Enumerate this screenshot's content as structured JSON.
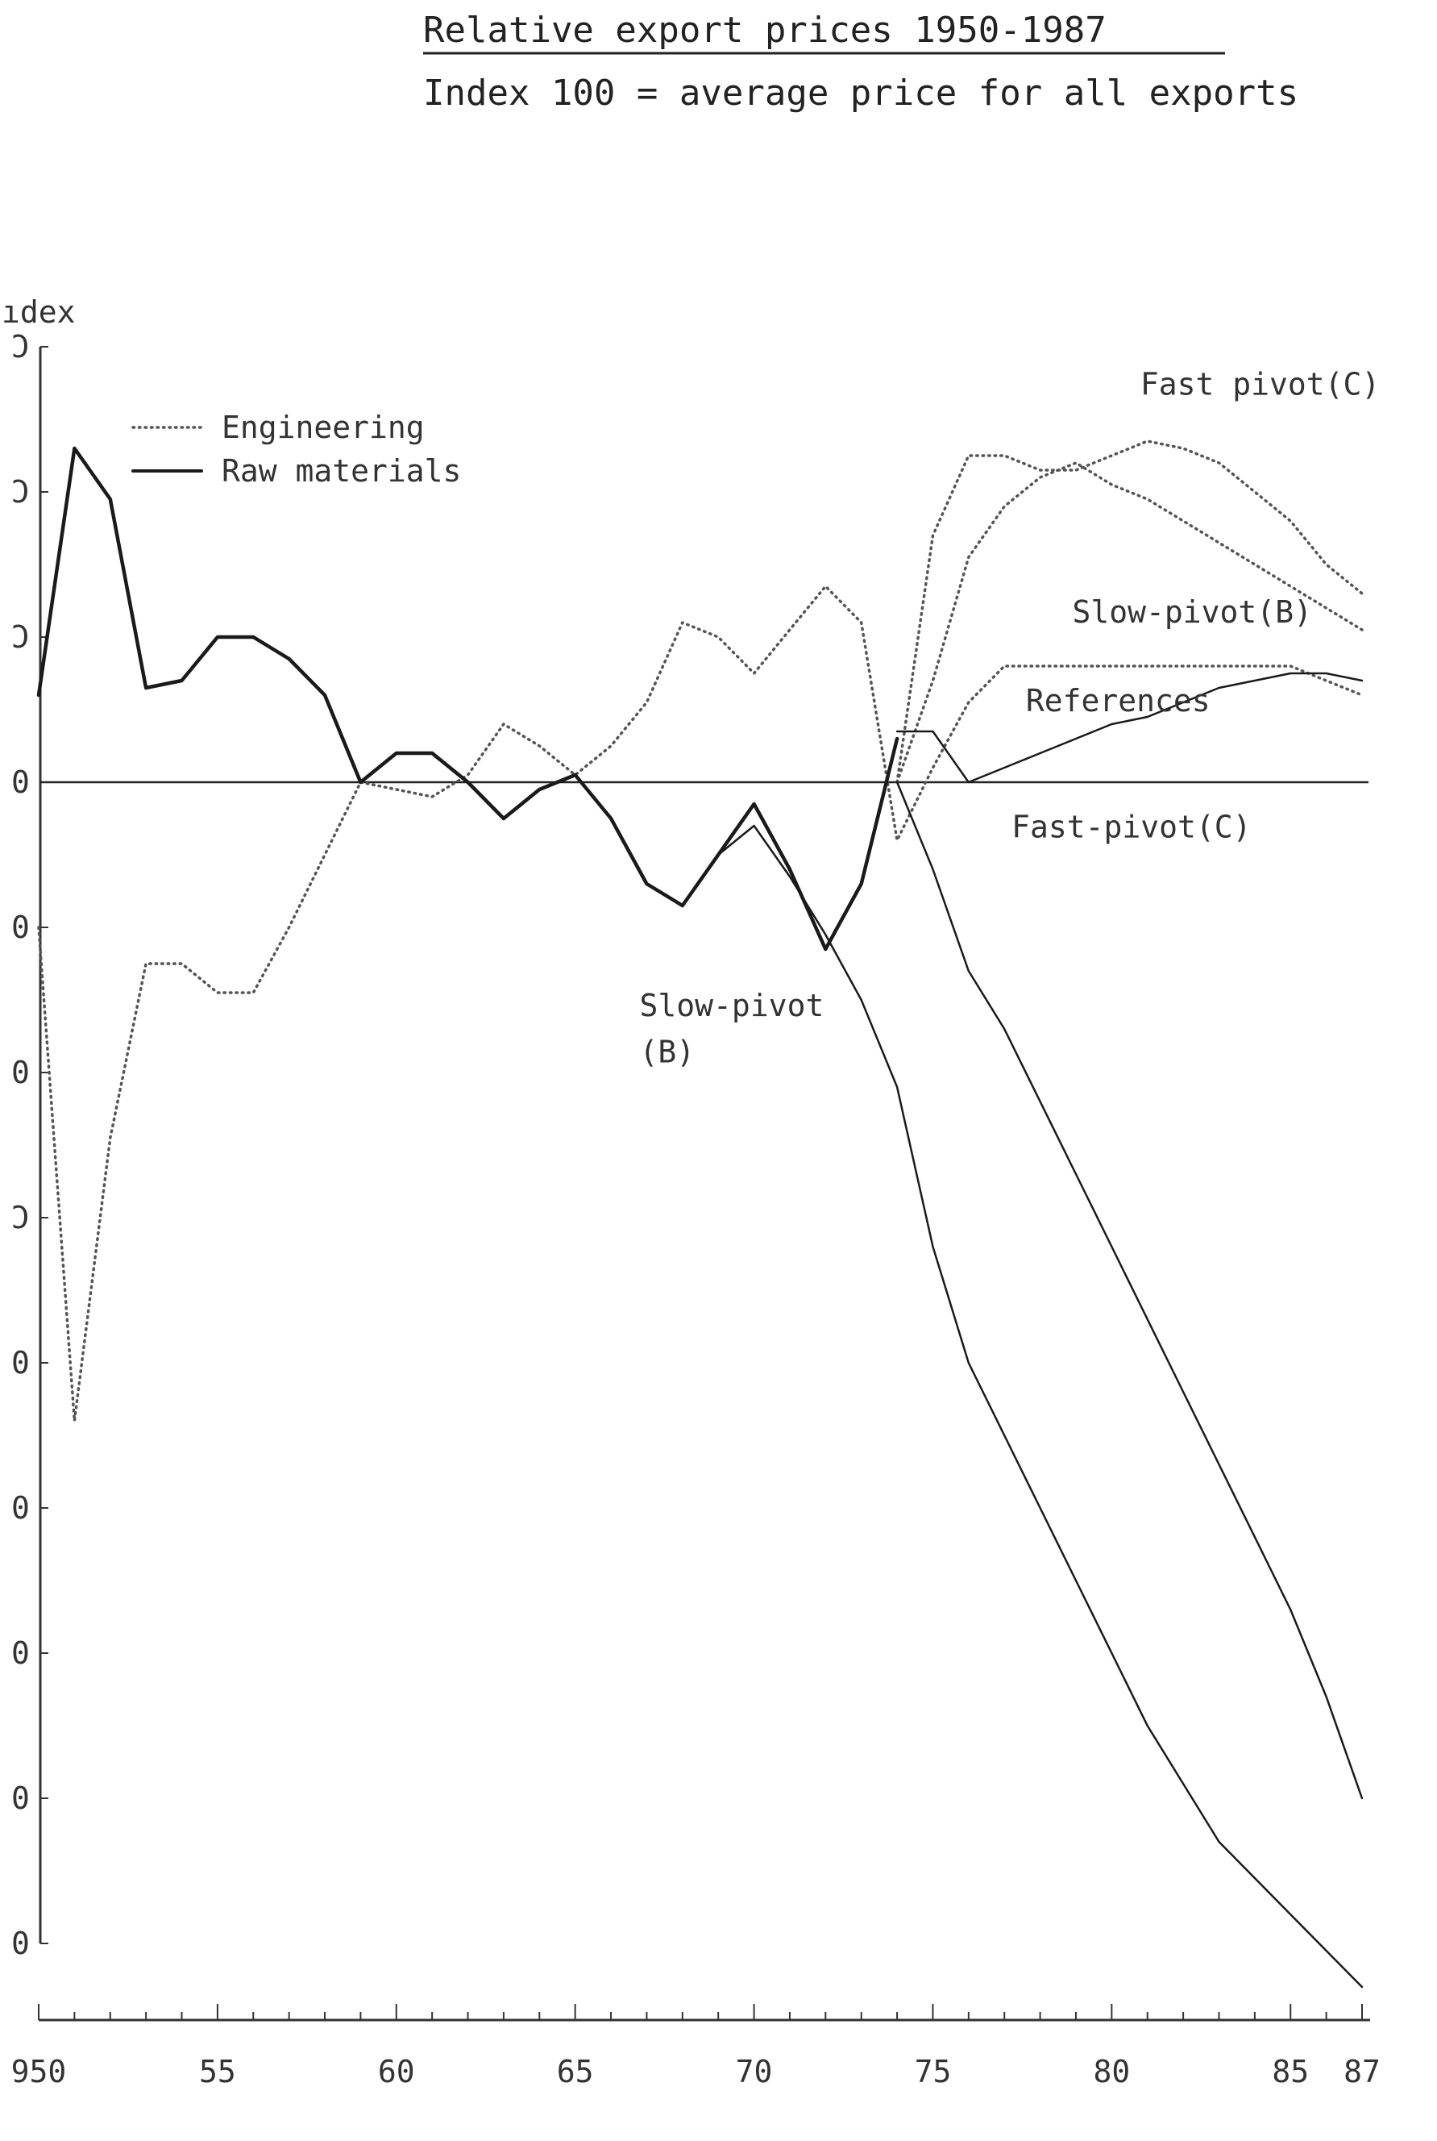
{
  "chart_data": {
    "type": "line",
    "title": "Relative export prices 1950-1987",
    "subtitle": "Index 100 = average price for all exports",
    "ylabel": "ıdex",
    "xlim": [
      1950,
      1987
    ],
    "x_ticks": [
      {
        "value": 1950,
        "label": "950"
      },
      {
        "value": 1955,
        "label": "55"
      },
      {
        "value": 1960,
        "label": "60"
      },
      {
        "value": 1965,
        "label": "65"
      },
      {
        "value": 1970,
        "label": "70"
      },
      {
        "value": 1975,
        "label": "75"
      },
      {
        "value": 1980,
        "label": "80"
      },
      {
        "value": 1985,
        "label": "85"
      },
      {
        "value": 1987,
        "label": "87"
      }
    ],
    "ylim": [
      0.5,
      11.5
    ],
    "y_ticks": [
      {
        "value": 11.5,
        "label": "Ͻ"
      },
      {
        "value": 10.5,
        "label": "Ͻ"
      },
      {
        "value": 9.5,
        "label": "Ͻ"
      },
      {
        "value": 8.5,
        "label": "0"
      },
      {
        "value": 7.5,
        "label": "0"
      },
      {
        "value": 6.5,
        "label": "0"
      },
      {
        "value": 5.5,
        "label": "Ͻ"
      },
      {
        "value": 4.5,
        "label": "0"
      },
      {
        "value": 3.5,
        "label": "0"
      },
      {
        "value": 2.5,
        "label": "0"
      },
      {
        "value": 1.5,
        "label": "0"
      },
      {
        "value": 0.5,
        "label": "0"
      }
    ],
    "reference_y": 8.5,
    "legend": {
      "placement": "top-left",
      "entries": [
        {
          "label": "Engineering",
          "style": "dotted"
        },
        {
          "label": "Raw materials",
          "style": "solid"
        }
      ]
    },
    "annotations": [
      {
        "text": "Fast pivot(C)",
        "x": 1980.8,
        "y": 11.17
      },
      {
        "text": "Slow-pivot(B)",
        "x": 1978.9,
        "y": 9.6
      },
      {
        "text": "References",
        "x": 1977.6,
        "y": 8.99
      },
      {
        "text": "Fast-pivot(C)",
        "x": 1977.2,
        "y": 8.12
      },
      {
        "text": "Slow-pivot",
        "x": 1966.8,
        "y": 6.89
      },
      {
        "text": "(B)",
        "x": 1966.8,
        "y": 6.57
      }
    ],
    "series": [
      {
        "name": "Engineering",
        "style": "dotted",
        "points": [
          [
            1950,
            7.5
          ],
          [
            1951,
            4.1
          ],
          [
            1952,
            6.05
          ],
          [
            1953,
            7.25
          ],
          [
            1954,
            7.25
          ],
          [
            1955,
            7.05
          ],
          [
            1956,
            7.05
          ],
          [
            1957,
            7.5
          ],
          [
            1958,
            8.0
          ],
          [
            1959,
            8.5
          ],
          [
            1960,
            8.45
          ],
          [
            1961,
            8.4
          ],
          [
            1962,
            8.55
          ],
          [
            1963,
            8.9
          ],
          [
            1964,
            8.75
          ],
          [
            1965,
            8.55
          ],
          [
            1966,
            8.75
          ],
          [
            1967,
            9.05
          ],
          [
            1968,
            9.6
          ],
          [
            1969,
            9.5
          ],
          [
            1970,
            9.25
          ],
          [
            1971,
            9.55
          ],
          [
            1972,
            9.85
          ],
          [
            1973,
            9.6
          ],
          [
            1974,
            8.1
          ],
          [
            1975,
            8.6
          ],
          [
            1976,
            9.05
          ],
          [
            1977,
            9.3
          ],
          [
            1978,
            9.3
          ],
          [
            1979,
            9.3
          ],
          [
            1980,
            9.3
          ],
          [
            1981,
            9.3
          ],
          [
            1982,
            9.3
          ],
          [
            1983,
            9.3
          ],
          [
            1984,
            9.3
          ],
          [
            1985,
            9.3
          ],
          [
            1986,
            9.2
          ],
          [
            1987,
            9.1
          ]
        ]
      },
      {
        "name": "Raw materials",
        "style": "solid",
        "points": [
          [
            1950,
            9.1
          ],
          [
            1951,
            10.8
          ],
          [
            1952,
            10.45
          ],
          [
            1953,
            9.15
          ],
          [
            1954,
            9.2
          ],
          [
            1955,
            9.5
          ],
          [
            1956,
            9.5
          ],
          [
            1957,
            9.35
          ],
          [
            1958,
            9.1
          ],
          [
            1959,
            8.5
          ],
          [
            1960,
            8.7
          ],
          [
            1961,
            8.7
          ],
          [
            1962,
            8.5
          ],
          [
            1963,
            8.25
          ],
          [
            1964,
            8.45
          ],
          [
            1965,
            8.55
          ],
          [
            1966,
            8.25
          ],
          [
            1967,
            7.8
          ],
          [
            1968,
            7.65
          ],
          [
            1969,
            8.0
          ],
          [
            1970,
            8.35
          ],
          [
            1971,
            7.9
          ],
          [
            1972,
            7.35
          ],
          [
            1973,
            7.8
          ],
          [
            1974,
            8.8
          ]
        ]
      },
      {
        "name": "Fast pivot(C)",
        "style": "dotted",
        "points": [
          [
            1974,
            8.5
          ],
          [
            1975,
            10.2
          ],
          [
            1976,
            10.75
          ],
          [
            1977,
            10.75
          ],
          [
            1978,
            10.65
          ],
          [
            1979,
            10.65
          ],
          [
            1980,
            10.75
          ],
          [
            1981,
            10.85
          ],
          [
            1982,
            10.8
          ],
          [
            1983,
            10.7
          ],
          [
            1984,
            10.5
          ],
          [
            1985,
            10.3
          ],
          [
            1986,
            10.0
          ],
          [
            1987,
            9.8
          ]
        ]
      },
      {
        "name": "Slow-pivot(B)",
        "style": "dotted",
        "points": [
          [
            1974,
            8.5
          ],
          [
            1975,
            9.2
          ],
          [
            1976,
            10.05
          ],
          [
            1977,
            10.4
          ],
          [
            1978,
            10.6
          ],
          [
            1979,
            10.7
          ],
          [
            1980,
            10.55
          ],
          [
            1981,
            10.45
          ],
          [
            1982,
            10.3
          ],
          [
            1983,
            10.15
          ],
          [
            1984,
            10.0
          ],
          [
            1985,
            9.85
          ],
          [
            1986,
            9.7
          ],
          [
            1987,
            9.55
          ]
        ]
      },
      {
        "name": "References",
        "style": "solid",
        "points": [
          [
            1974,
            8.85
          ],
          [
            1975,
            8.85
          ],
          [
            1976,
            8.5
          ],
          [
            1977,
            8.6
          ],
          [
            1978,
            8.7
          ],
          [
            1979,
            8.8
          ],
          [
            1980,
            8.9
          ],
          [
            1981,
            8.95
          ],
          [
            1982,
            9.05
          ],
          [
            1983,
            9.15
          ],
          [
            1984,
            9.2
          ],
          [
            1985,
            9.25
          ],
          [
            1986,
            9.25
          ],
          [
            1987,
            9.2
          ]
        ]
      },
      {
        "name": "Fast-pivot(C)",
        "style": "solid",
        "points": [
          [
            1974,
            8.5
          ],
          [
            1975,
            7.9
          ],
          [
            1976,
            7.2
          ],
          [
            1977,
            6.8
          ],
          [
            1978,
            6.3
          ],
          [
            1979,
            5.8
          ],
          [
            1980,
            5.3
          ],
          [
            1981,
            4.8
          ],
          [
            1982,
            4.3
          ],
          [
            1983,
            3.8
          ],
          [
            1984,
            3.3
          ],
          [
            1985,
            2.8
          ],
          [
            1986,
            2.2
          ],
          [
            1987,
            1.5
          ]
        ]
      },
      {
        "name": "Slow-pivot(B)",
        "style": "solid",
        "points": [
          [
            1969,
            8.0
          ],
          [
            1970,
            8.2
          ],
          [
            1971,
            7.85
          ],
          [
            1972,
            7.45
          ],
          [
            1973,
            7.0
          ],
          [
            1974,
            6.4
          ],
          [
            1975,
            5.3
          ],
          [
            1976,
            4.5
          ],
          [
            1977,
            4.0
          ],
          [
            1978,
            3.5
          ],
          [
            1979,
            3.0
          ],
          [
            1980,
            2.5
          ],
          [
            1981,
            2.0
          ],
          [
            1982,
            1.6
          ],
          [
            1983,
            1.2
          ],
          [
            1984,
            0.95
          ],
          [
            1985,
            0.7
          ],
          [
            1986,
            0.45
          ],
          [
            1987,
            0.2
          ]
        ]
      }
    ]
  }
}
